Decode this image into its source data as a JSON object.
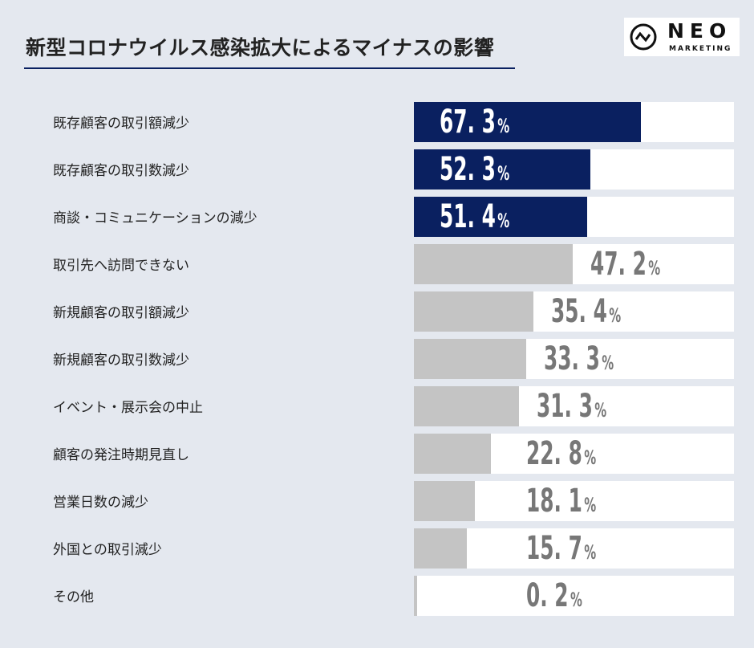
{
  "title": "新型コロナウイルス感染拡大によるマイナスの影響",
  "logo": {
    "name": "NEO",
    "sub": "MARKETING"
  },
  "colors": {
    "highlight": "#0a2060",
    "normal": "#c4c4c4",
    "track": "#ffffff",
    "highlight_text": "#ffffff",
    "normal_text": "#777777"
  },
  "chart_data": {
    "type": "bar",
    "orientation": "horizontal",
    "title": "新型コロナウイルス感染拡大によるマイナスの影響",
    "unit": "%",
    "xlim": [
      0,
      95
    ],
    "categories": [
      "既存顧客の取引額減少",
      "既存顧客の取引数減少",
      "商談・コミュニケーションの減少",
      "取引先へ訪問できない",
      "新規顧客の取引額減少",
      "新規顧客の取引数減少",
      "イベント・展示会の中止",
      "顧客の発注時期見直し",
      "営業日数の減少",
      "外国との取引減少",
      "その他"
    ],
    "values": [
      67.3,
      52.3,
      51.4,
      47.2,
      35.4,
      33.3,
      31.3,
      22.8,
      18.1,
      15.7,
      0.2
    ],
    "labels": [
      "67. 3",
      "52. 3",
      "51. 4",
      "47. 2",
      "35. 4",
      "33. 3",
      "31. 3",
      "22. 8",
      "18. 1",
      "15. 7",
      "0. 2"
    ],
    "highlighted_count": 3
  }
}
